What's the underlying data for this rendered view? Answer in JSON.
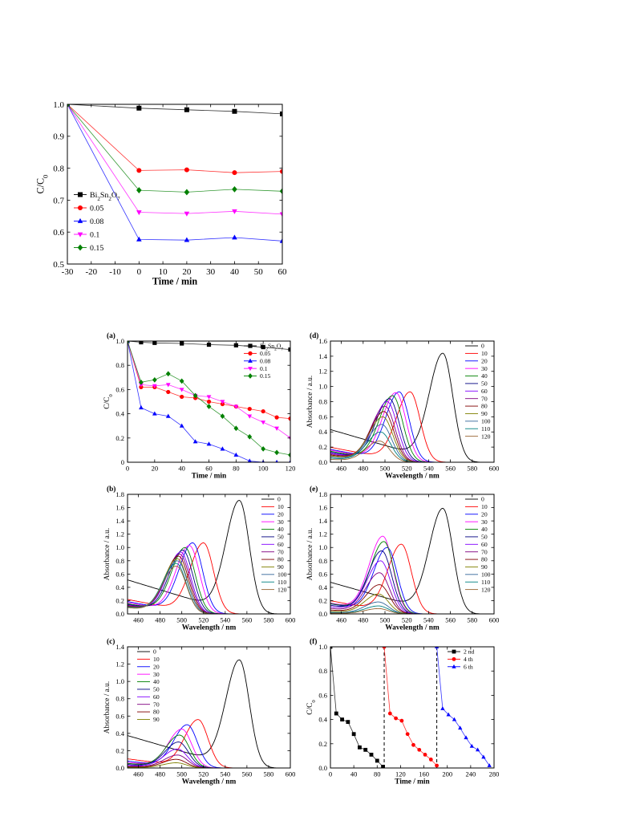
{
  "chart_data": [
    {
      "id": "top",
      "type": "line",
      "panel_label": "",
      "xlabel": "Time / min",
      "ylabel": "C/C0",
      "xlim": [
        -30,
        60
      ],
      "ylim": [
        0.5,
        1.0
      ],
      "xticks": [
        -30,
        -20,
        -10,
        0,
        10,
        20,
        30,
        40,
        50,
        60
      ],
      "yticks": [
        0.5,
        0.6,
        0.7,
        0.8,
        0.9,
        1.0
      ],
      "legend": "bottom-left",
      "series": [
        {
          "name": "Bi2Sn2O7",
          "color": "#000000",
          "marker": "square",
          "x": [
            -30,
            0,
            20,
            40,
            60
          ],
          "y": [
            1.0,
            0.988,
            0.983,
            0.978,
            0.97
          ]
        },
        {
          "name": "0.05",
          "color": "#ff0000",
          "marker": "circle",
          "x": [
            -30,
            0,
            20,
            40,
            60
          ],
          "y": [
            1.0,
            0.793,
            0.795,
            0.786,
            0.79
          ]
        },
        {
          "name": "0.08",
          "color": "#0000ff",
          "marker": "triangle-up",
          "x": [
            -30,
            0,
            20,
            40,
            60
          ],
          "y": [
            1.0,
            0.577,
            0.575,
            0.583,
            0.572
          ]
        },
        {
          "name": "0.1",
          "color": "#ff00ff",
          "marker": "triangle-down",
          "x": [
            -30,
            0,
            20,
            40,
            60
          ],
          "y": [
            1.0,
            0.662,
            0.658,
            0.665,
            0.656
          ]
        },
        {
          "name": "0.15",
          "color": "#008000",
          "marker": "diamond",
          "x": [
            -30,
            0,
            20,
            40,
            60
          ],
          "y": [
            1.0,
            0.731,
            0.725,
            0.734,
            0.728
          ]
        }
      ]
    },
    {
      "id": "a",
      "type": "line",
      "panel_label": "(a)",
      "xlabel": "Time / min",
      "ylabel": "C/C0",
      "xlim": [
        0,
        120
      ],
      "ylim": [
        0,
        1.0
      ],
      "xticks": [
        0,
        20,
        40,
        60,
        80,
        100,
        120
      ],
      "yticks": [
        0,
        0.2,
        0.4,
        0.6,
        0.8,
        1.0
      ],
      "legend": "top-right",
      "series": [
        {
          "name": "Bi2Sn2O7",
          "color": "#000000",
          "marker": "square",
          "x": [
            0,
            10,
            20,
            40,
            60,
            80,
            100,
            120
          ],
          "y": [
            1.0,
            0.99,
            0.985,
            0.98,
            0.97,
            0.965,
            0.95,
            0.93
          ]
        },
        {
          "name": "0.05",
          "color": "#ff0000",
          "marker": "circle",
          "x": [
            0,
            10,
            20,
            30,
            40,
            50,
            60,
            70,
            80,
            90,
            100,
            110,
            120
          ],
          "y": [
            1.0,
            0.62,
            0.62,
            0.58,
            0.54,
            0.53,
            0.5,
            0.48,
            0.46,
            0.44,
            0.42,
            0.37,
            0.36
          ]
        },
        {
          "name": "0.08",
          "color": "#0000ff",
          "marker": "triangle-up",
          "x": [
            0,
            10,
            20,
            30,
            40,
            50,
            60,
            70,
            80,
            90,
            100,
            110,
            120
          ],
          "y": [
            1.0,
            0.45,
            0.4,
            0.38,
            0.3,
            0.17,
            0.15,
            0.11,
            0.06,
            0.01,
            0.0,
            0.0,
            0.0
          ]
        },
        {
          "name": "0.1",
          "color": "#ff00ff",
          "marker": "triangle-down",
          "x": [
            0,
            10,
            20,
            30,
            40,
            50,
            60,
            70,
            80,
            90,
            100,
            110,
            120
          ],
          "y": [
            1.0,
            0.64,
            0.63,
            0.64,
            0.6,
            0.55,
            0.54,
            0.5,
            0.46,
            0.38,
            0.33,
            0.28,
            0.2
          ]
        },
        {
          "name": "0.15",
          "color": "#008000",
          "marker": "diamond",
          "x": [
            0,
            10,
            20,
            30,
            40,
            50,
            60,
            70,
            80,
            90,
            100,
            110,
            120
          ],
          "y": [
            1.0,
            0.66,
            0.68,
            0.73,
            0.67,
            0.55,
            0.46,
            0.38,
            0.28,
            0.21,
            0.11,
            0.08,
            0.06
          ]
        }
      ]
    },
    {
      "id": "b",
      "type": "line",
      "panel_label": "(b)",
      "xlabel": "Wavelength / nm",
      "ylabel": "Absorbance / a.u.",
      "xlim": [
        450,
        600
      ],
      "ylim": [
        0,
        1.8
      ],
      "xticks": [
        460,
        480,
        500,
        520,
        540,
        560,
        580,
        600
      ],
      "yticks": [
        0.0,
        0.2,
        0.4,
        0.6,
        0.8,
        1.0,
        1.2,
        1.4,
        1.6,
        1.8
      ],
      "legend": "top-right",
      "series": [
        {
          "name": "0",
          "color": "#000000",
          "peak": 553,
          "height": 1.71
        },
        {
          "name": "10",
          "color": "#ff0000",
          "peak": 520,
          "height": 1.07
        },
        {
          "name": "20",
          "color": "#0000ff",
          "peak": 510,
          "height": 1.07
        },
        {
          "name": "30",
          "color": "#ff00ff",
          "peak": 507,
          "height": 1.03
        },
        {
          "name": "40",
          "color": "#008000",
          "peak": 503,
          "height": 1.0
        },
        {
          "name": "50",
          "color": "#000080",
          "peak": 501,
          "height": 0.96
        },
        {
          "name": "60",
          "color": "#8000ff",
          "peak": 499,
          "height": 0.93
        },
        {
          "name": "70",
          "color": "#800080",
          "peak": 498,
          "height": 0.9
        },
        {
          "name": "80",
          "color": "#800000",
          "peak": 497,
          "height": 0.87
        },
        {
          "name": "90",
          "color": "#808000",
          "peak": 496,
          "height": 0.83
        },
        {
          "name": "100",
          "color": "#336699",
          "peak": 496,
          "height": 0.8
        },
        {
          "name": "110",
          "color": "#008080",
          "peak": 495,
          "height": 0.76
        },
        {
          "name": "120",
          "color": "#996633",
          "peak": 495,
          "height": 0.72
        }
      ]
    },
    {
      "id": "c",
      "type": "line",
      "panel_label": "(c)",
      "xlabel": "Wavelength / nm",
      "ylabel": "Absorbance / a.u.",
      "xlim": [
        450,
        600
      ],
      "ylim": [
        0,
        1.4
      ],
      "xticks": [
        460,
        480,
        500,
        520,
        540,
        560,
        580,
        600
      ],
      "yticks": [
        0.0,
        0.2,
        0.4,
        0.6,
        0.8,
        1.0,
        1.2,
        1.4
      ],
      "legend": "top-left",
      "series": [
        {
          "name": "0",
          "color": "#000000",
          "peak": 553,
          "height": 1.25
        },
        {
          "name": "10",
          "color": "#ff0000",
          "peak": 515,
          "height": 0.56
        },
        {
          "name": "20",
          "color": "#0000ff",
          "peak": 505,
          "height": 0.5
        },
        {
          "name": "30",
          "color": "#ff00ff",
          "peak": 500,
          "height": 0.45
        },
        {
          "name": "40",
          "color": "#008000",
          "peak": 498,
          "height": 0.38
        },
        {
          "name": "50",
          "color": "#000080",
          "peak": 497,
          "height": 0.3
        },
        {
          "name": "60",
          "color": "#8000ff",
          "peak": 496,
          "height": 0.22
        },
        {
          "name": "70",
          "color": "#800080",
          "peak": 496,
          "height": 0.15
        },
        {
          "name": "80",
          "color": "#800000",
          "peak": 495,
          "height": 0.1
        },
        {
          "name": "90",
          "color": "#808000",
          "peak": 495,
          "height": 0.06
        }
      ]
    },
    {
      "id": "d",
      "type": "line",
      "panel_label": "(d)",
      "xlabel": "Wavelength / nm",
      "ylabel": "Absorbance / a.u.",
      "xlim": [
        450,
        600
      ],
      "ylim": [
        0,
        1.6
      ],
      "xticks": [
        460,
        480,
        500,
        520,
        540,
        560,
        580,
        600
      ],
      "yticks": [
        0.0,
        0.2,
        0.4,
        0.6,
        0.8,
        1.0,
        1.2,
        1.4,
        1.6
      ],
      "legend": "top-right",
      "series": [
        {
          "name": "0",
          "color": "#000000",
          "peak": 553,
          "height": 1.44
        },
        {
          "name": "10",
          "color": "#ff0000",
          "peak": 523,
          "height": 0.93
        },
        {
          "name": "20",
          "color": "#0000ff",
          "peak": 513,
          "height": 0.93
        },
        {
          "name": "30",
          "color": "#ff00ff",
          "peak": 510,
          "height": 0.92
        },
        {
          "name": "40",
          "color": "#008000",
          "peak": 507,
          "height": 0.88
        },
        {
          "name": "50",
          "color": "#000080",
          "peak": 504,
          "height": 0.84
        },
        {
          "name": "60",
          "color": "#8000ff",
          "peak": 502,
          "height": 0.8
        },
        {
          "name": "70",
          "color": "#800080",
          "peak": 500,
          "height": 0.74
        },
        {
          "name": "80",
          "color": "#800000",
          "peak": 499,
          "height": 0.67
        },
        {
          "name": "90",
          "color": "#808000",
          "peak": 498,
          "height": 0.6
        },
        {
          "name": "100",
          "color": "#336699",
          "peak": 497,
          "height": 0.5
        },
        {
          "name": "110",
          "color": "#008080",
          "peak": 496,
          "height": 0.4
        },
        {
          "name": "120",
          "color": "#996633",
          "peak": 495,
          "height": 0.28
        }
      ]
    },
    {
      "id": "e",
      "type": "line",
      "panel_label": "(e)",
      "xlabel": "Wavelength / nm",
      "ylabel": "Absorbance / a.u.",
      "xlim": [
        450,
        600
      ],
      "ylim": [
        0,
        1.8
      ],
      "xticks": [
        460,
        480,
        500,
        520,
        540,
        560,
        580,
        600
      ],
      "yticks": [
        0.0,
        0.2,
        0.4,
        0.6,
        0.8,
        1.0,
        1.2,
        1.4,
        1.6,
        1.8
      ],
      "legend": "top-right",
      "series": [
        {
          "name": "0",
          "color": "#000000",
          "peak": 553,
          "height": 1.59
        },
        {
          "name": "10",
          "color": "#ff0000",
          "peak": 515,
          "height": 1.05
        },
        {
          "name": "20",
          "color": "#0000ff",
          "peak": 502,
          "height": 1.0
        },
        {
          "name": "30",
          "color": "#ff00ff",
          "peak": 498,
          "height": 1.17
        },
        {
          "name": "40",
          "color": "#008000",
          "peak": 499,
          "height": 1.09
        },
        {
          "name": "50",
          "color": "#000080",
          "peak": 497,
          "height": 0.95
        },
        {
          "name": "60",
          "color": "#8000ff",
          "peak": 496,
          "height": 0.8
        },
        {
          "name": "70",
          "color": "#800080",
          "peak": 495,
          "height": 0.62
        },
        {
          "name": "80",
          "color": "#800000",
          "peak": 495,
          "height": 0.44
        },
        {
          "name": "90",
          "color": "#808000",
          "peak": 494,
          "height": 0.3
        },
        {
          "name": "100",
          "color": "#336699",
          "peak": 494,
          "height": 0.18
        },
        {
          "name": "110",
          "color": "#008080",
          "peak": 494,
          "height": 0.12
        },
        {
          "name": "120",
          "color": "#996633",
          "peak": 494,
          "height": 0.08
        }
      ]
    },
    {
      "id": "f",
      "type": "line",
      "panel_label": "(f)",
      "xlabel": "Time / min",
      "ylabel": "C/C0",
      "xlim": [
        0,
        280
      ],
      "ylim": [
        0,
        1.0
      ],
      "xticks": [
        0,
        40,
        80,
        120,
        160,
        200,
        240,
        280
      ],
      "yticks": [
        0.0,
        0.2,
        0.4,
        0.6,
        0.8,
        1.0
      ],
      "legend": "top-right",
      "dashed_lines_x": [
        92,
        182
      ],
      "series": [
        {
          "name": "2 nd",
          "color": "#000000",
          "marker": "square",
          "x": [
            0,
            10,
            20,
            30,
            40,
            50,
            60,
            70,
            80,
            90
          ],
          "y": [
            1.0,
            0.45,
            0.4,
            0.38,
            0.28,
            0.17,
            0.15,
            0.11,
            0.06,
            0.01
          ]
        },
        {
          "name": "4 th",
          "color": "#ff0000",
          "marker": "circle",
          "x": [
            92,
            102,
            112,
            122,
            132,
            142,
            152,
            162,
            172,
            182
          ],
          "y": [
            1.0,
            0.45,
            0.41,
            0.39,
            0.28,
            0.19,
            0.15,
            0.11,
            0.07,
            0.02
          ]
        },
        {
          "name": "6 th",
          "color": "#0000ff",
          "marker": "triangle-up",
          "x": [
            182,
            192,
            202,
            212,
            222,
            232,
            242,
            252,
            262,
            272
          ],
          "y": [
            1.0,
            0.49,
            0.44,
            0.4,
            0.33,
            0.25,
            0.18,
            0.15,
            0.09,
            0.02
          ]
        }
      ]
    }
  ]
}
